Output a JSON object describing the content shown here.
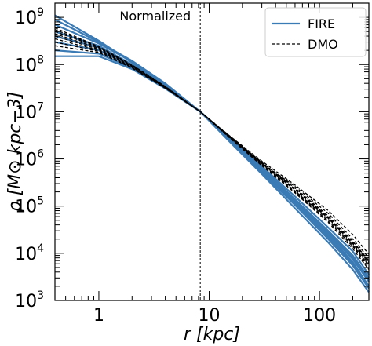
{
  "chart_data": {
    "type": "line",
    "title": "",
    "annotation": "Normalized",
    "xlabel": "r [kpc]",
    "ylabel": "ρ [M⊙ kpc−3]",
    "xscale": "log",
    "yscale": "log",
    "xlim": [
      0.4,
      280
    ],
    "ylim": [
      1000,
      2000000000
    ],
    "x_ticks": [
      {
        "value": 1,
        "label": "1"
      },
      {
        "value": 10,
        "label": "10"
      },
      {
        "value": 100,
        "label": "100"
      }
    ],
    "y_ticks": [
      {
        "value": 1000,
        "base": "10",
        "exp": "3"
      },
      {
        "value": 10000,
        "base": "10",
        "exp": "4"
      },
      {
        "value": 100000,
        "base": "10",
        "exp": "5"
      },
      {
        "value": 1000000,
        "base": "10",
        "exp": "6"
      },
      {
        "value": 10000000,
        "base": "10",
        "exp": "7"
      },
      {
        "value": 100000000,
        "base": "10",
        "exp": "8"
      },
      {
        "value": 1000000000,
        "base": "10",
        "exp": "9"
      }
    ],
    "vline_x": 8.3,
    "normalization": {
      "x": 8.3,
      "y": 10000000
    },
    "legend": {
      "position": "top-right"
    },
    "series": [
      {
        "name": "FIRE",
        "color": "#3b7bb5",
        "style": "solid",
        "width": 2.2,
        "lines": [
          {
            "x": [
              0.4,
              1,
              2,
              4,
              8.3,
              16,
              30,
              60,
              120,
              200,
              280
            ],
            "y": [
              900000000,
              300000000,
              120000000,
              40000000,
              10000000,
              2300000,
              550000,
              110000,
              22000,
              6000,
              2000
            ]
          },
          {
            "x": [
              0.4,
              1,
              2,
              4,
              8.3,
              16,
              30,
              60,
              120,
              200,
              280
            ],
            "y": [
              1100000000,
              320000000,
              110000000,
              37000000,
              10000000,
              2100000,
              480000,
              90000,
              17000,
              4500,
              1500
            ]
          },
          {
            "x": [
              0.4,
              1,
              2,
              4,
              8.3,
              16,
              30,
              60,
              120,
              200,
              280
            ],
            "y": [
              700000000,
              280000000,
              115000000,
              38000000,
              10000000,
              2200000,
              520000,
              105000,
              20000,
              5500,
              1800
            ]
          },
          {
            "x": [
              0.4,
              1,
              2,
              4,
              8.3,
              16,
              30,
              60,
              120,
              200,
              280
            ],
            "y": [
              500000000,
              250000000,
              100000000,
              35000000,
              10000000,
              2400000,
              600000,
              130000,
              26000,
              7500,
              2500
            ]
          },
          {
            "x": [
              0.4,
              1,
              2,
              4,
              8.3,
              16,
              30,
              60,
              120,
              200,
              280
            ],
            "y": [
              400000000,
              230000000,
              95000000,
              34000000,
              10000000,
              2500000,
              650000,
              140000,
              30000,
              9000,
              3000
            ]
          },
          {
            "x": [
              0.4,
              1,
              2,
              4,
              8.3,
              16,
              30,
              60,
              120,
              200,
              280
            ],
            "y": [
              300000000,
              200000000,
              90000000,
              33000000,
              10000000,
              2300000,
              580000,
              120000,
              24000,
              6500,
              2000
            ]
          },
          {
            "x": [
              0.4,
              1,
              2,
              4,
              8.3,
              16,
              30,
              60,
              120,
              200,
              280
            ],
            "y": [
              200000000,
              170000000,
              85000000,
              32000000,
              10000000,
              2400000,
              620000,
              135000,
              28000,
              8000,
              2700
            ]
          },
          {
            "x": [
              0.4,
              1,
              2,
              4,
              8.3,
              16,
              30,
              60,
              120,
              200,
              280
            ],
            "y": [
              150000000,
              150000000,
              80000000,
              31000000,
              10000000,
              2600000,
              700000,
              160000,
              35000,
              11000,
              3500
            ]
          }
        ]
      },
      {
        "name": "DMO",
        "color": "#000000",
        "style": "dashed",
        "width": 1.3,
        "lines": [
          {
            "x": [
              0.4,
              1,
              2,
              4,
              8.3,
              16,
              30,
              60,
              120,
              200,
              280
            ],
            "y": [
              500000000,
              230000000,
              95000000,
              34000000,
              10000000,
              2700000,
              800000,
              220000,
              55000,
              16000,
              6000
            ]
          },
          {
            "x": [
              0.4,
              1,
              2,
              4,
              8.3,
              16,
              30,
              60,
              120,
              200,
              280
            ],
            "y": [
              600000000,
              240000000,
              98000000,
              34500000,
              10000000,
              2600000,
              750000,
              200000,
              48000,
              14000,
              5000
            ]
          },
          {
            "x": [
              0.4,
              1,
              2,
              4,
              8.3,
              16,
              30,
              60,
              120,
              200,
              280
            ],
            "y": [
              450000000,
              220000000,
              93000000,
              33500000,
              10000000,
              2800000,
              850000,
              240000,
              62000,
              18000,
              7000
            ]
          },
          {
            "x": [
              0.4,
              1,
              2,
              4,
              8.3,
              16,
              30,
              60,
              120,
              200,
              280
            ],
            "y": [
              400000000,
              210000000,
              90000000,
              33000000,
              10000000,
              2750000,
              820000,
              260000,
              70000,
              20000,
              8000
            ]
          },
          {
            "x": [
              0.4,
              1,
              2,
              4,
              8.3,
              16,
              30,
              60,
              120,
              200,
              280
            ],
            "y": [
              350000000,
              200000000,
              88000000,
              32500000,
              10000000,
              2650000,
              780000,
              210000,
              52000,
              15000,
              5500
            ]
          },
          {
            "x": [
              0.4,
              1,
              2,
              4,
              8.3,
              16,
              30,
              60,
              120,
              200,
              280
            ],
            "y": [
              550000000,
              235000000,
              96000000,
              34000000,
              10000000,
              2550000,
              720000,
              190000,
              45000,
              12500,
              4500
            ]
          },
          {
            "x": [
              0.4,
              1,
              2,
              4,
              8.3,
              16,
              30,
              60,
              120,
              200,
              280
            ],
            "y": [
              300000000,
              190000000,
              86000000,
              32000000,
              10000000,
              2850000,
              900000,
              280000,
              80000,
              25000,
              9500
            ]
          },
          {
            "x": [
              0.4,
              1,
              2,
              4,
              8.3,
              16,
              30,
              60,
              120,
              200,
              280
            ],
            "y": [
              250000000,
              180000000,
              84000000,
              31500000,
              10000000,
              2700000,
              830000,
              230000,
              58000,
              17000,
              6500
            ]
          }
        ]
      }
    ]
  }
}
